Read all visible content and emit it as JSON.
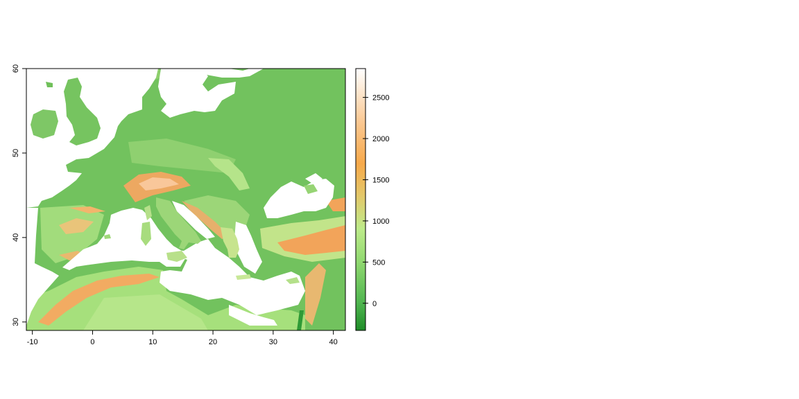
{
  "map": {
    "x_ticks": [
      -10,
      0,
      10,
      20,
      30,
      40
    ],
    "y_ticks": [
      30,
      40,
      50,
      60
    ],
    "lon_range": [
      -11,
      42
    ],
    "lat_range": [
      29,
      60
    ],
    "water_color": "#ffffff"
  },
  "legend": {
    "ticks": [
      0,
      500,
      1000,
      1500,
      2000,
      2500
    ],
    "range": [
      -330,
      2850
    ],
    "color_stops": [
      {
        "value": -330,
        "color": "#1e8c28"
      },
      {
        "value": 0,
        "color": "#4fb54f"
      },
      {
        "value": 500,
        "color": "#90d870"
      },
      {
        "value": 900,
        "color": "#bdeb8a"
      },
      {
        "value": 1300,
        "color": "#e3c86a"
      },
      {
        "value": 1700,
        "color": "#f7a94a"
      },
      {
        "value": 2200,
        "color": "#fbc892"
      },
      {
        "value": 2850,
        "color": "#ffffff"
      }
    ]
  }
}
